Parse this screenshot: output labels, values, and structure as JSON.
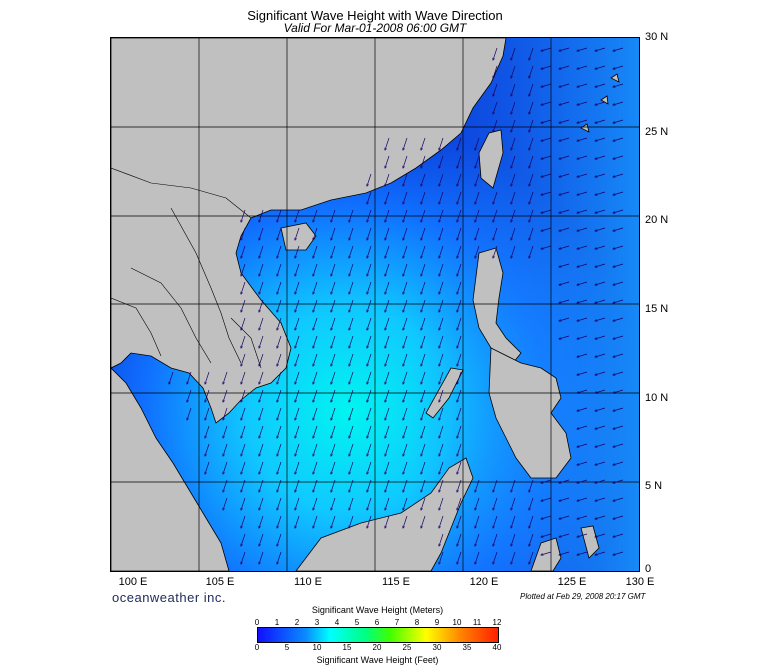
{
  "title": "Significant Wave Height with Wave Direction",
  "subtitle": "Valid For Mar-01-2008 06:00 GMT",
  "brand": "oceanweather inc.",
  "plotted": "Plotted at Feb 29, 2008 20:17 GMT",
  "lat_labels": [
    "30 N",
    "25 N",
    "20 N",
    "15 N",
    "10 N",
    "5 N",
    "0"
  ],
  "lon_labels": [
    "100 E",
    "105 E",
    "110 E",
    "115 E",
    "120 E",
    "125 E",
    "130 E"
  ],
  "colorbar": {
    "title_meters": "Significant Wave Height (Meters)",
    "title_feet": "Significant Wave Height (Feet)",
    "meters_ticks": [
      "0",
      "1",
      "2",
      "3",
      "4",
      "5",
      "6",
      "7",
      "8",
      "9",
      "10",
      "11",
      "12"
    ],
    "feet_ticks": [
      "0",
      "5",
      "10",
      "15",
      "20",
      "25",
      "30",
      "35",
      "40"
    ]
  },
  "colors": {
    "land": "#c0c0c0",
    "deep_sea": "#0a3cd8",
    "mid_sea": "#1a90ff",
    "high_sea": "#00f0f0"
  }
}
